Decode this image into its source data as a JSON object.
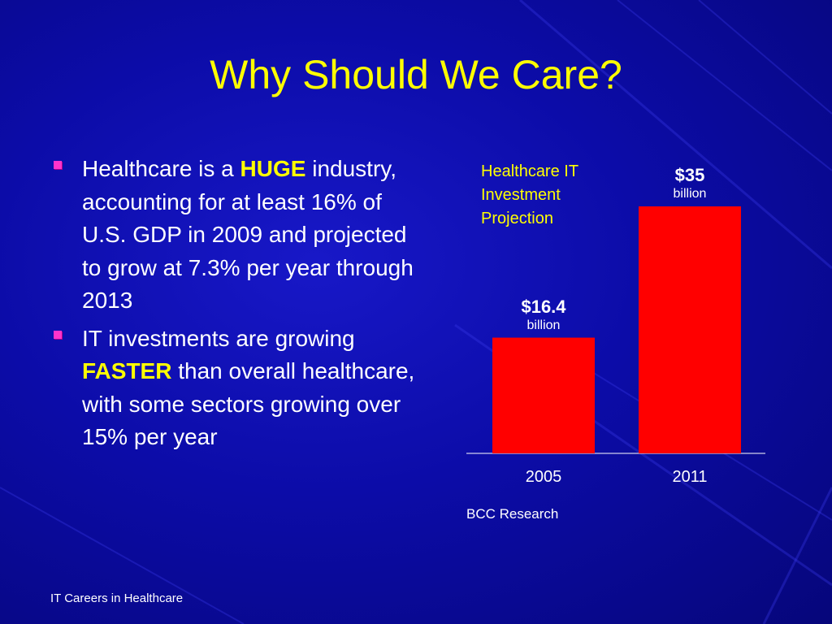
{
  "slide": {
    "title": "Why Should We Care?",
    "footer": "IT Careers in Healthcare",
    "colors": {
      "background": "#0c0ca8",
      "title": "#ffff00",
      "bullet_marker": "#ff33cc",
      "bar": "#ff0000"
    }
  },
  "bullets": [
    {
      "before": "Healthcare is a ",
      "highlight": "HUGE",
      "after": " industry, accounting for at least 16% of U.S. GDP in 2009 and projected to grow at 7.3% per year through 2013"
    },
    {
      "before": "IT investments are growing ",
      "highlight": "FASTER",
      "after": " than overall healthcare, with some sectors growing over 15% per year"
    }
  ],
  "chart_data": {
    "type": "bar",
    "title": "Healthcare IT Investment Projection",
    "categories": [
      "2005",
      "2011"
    ],
    "values": [
      16.4,
      35
    ],
    "data_labels": [
      {
        "amount": "$16.4",
        "unit": "billion"
      },
      {
        "amount": "$35",
        "unit": "billion"
      }
    ],
    "source": "BCC Research",
    "bar_color": "#ff0000",
    "ylim": [
      0,
      35
    ],
    "grid": false
  }
}
